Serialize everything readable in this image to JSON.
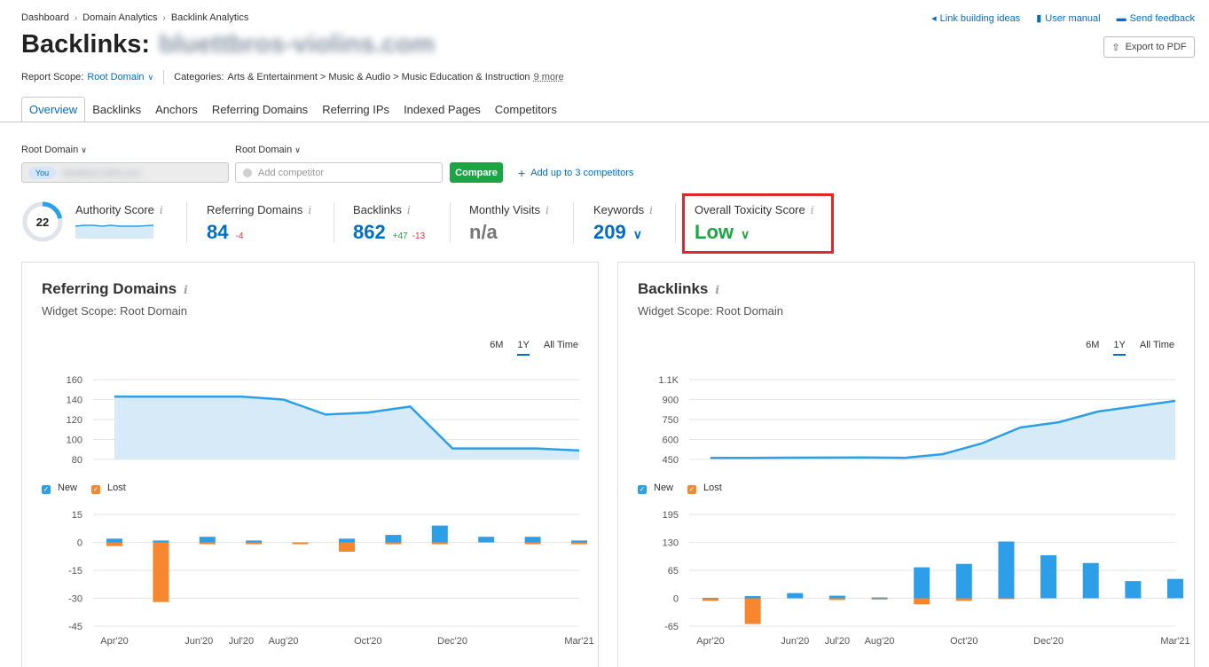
{
  "breadcrumb": [
    "Dashboard",
    "Domain Analytics",
    "Backlink Analytics"
  ],
  "top_links": [
    {
      "label": "Link building ideas",
      "icon": "megaphone-icon"
    },
    {
      "label": "User manual",
      "icon": "book-icon"
    },
    {
      "label": "Send feedback",
      "icon": "chat-icon"
    }
  ],
  "page_title": "Backlinks:",
  "page_domain": "bluettbros-violins.com",
  "export_label": "Export to PDF",
  "report_scope": {
    "label": "Report Scope:",
    "value": "Root Domain"
  },
  "categories": {
    "label": "Categories:",
    "value": "Arts & Entertainment > Music & Audio > Music Education & Instruction",
    "more": "9 more"
  },
  "tabs": [
    "Overview",
    "Backlinks",
    "Anchors",
    "Referring Domains",
    "Referring IPs",
    "Indexed Pages",
    "Competitors"
  ],
  "compare_bar": {
    "scope_1": "Root Domain",
    "scope_2": "Root Domain",
    "you_badge": "You",
    "you_domain": "bluettbros-violins.com",
    "competitor_placeholder": "Add competitor",
    "compare_button": "Compare",
    "add_competitors": "Add up to 3 competitors"
  },
  "metrics": {
    "authority": {
      "label": "Authority Score",
      "value": "22"
    },
    "referring_domains": {
      "label": "Referring Domains",
      "value": "84",
      "delta_down": "-4"
    },
    "backlinks": {
      "label": "Backlinks",
      "value": "862",
      "delta_up": "+47",
      "delta_down": "-13"
    },
    "monthly_visits": {
      "label": "Monthly Visits",
      "value": "n/a"
    },
    "keywords": {
      "label": "Keywords",
      "value": "209"
    },
    "toxicity": {
      "label": "Overall Toxicity Score",
      "value": "Low"
    }
  },
  "info_glyph": "i",
  "periods": [
    "6M",
    "1Y",
    "All Time"
  ],
  "legend": {
    "new": "New",
    "lost": "Lost"
  },
  "colors": {
    "accent": "#006dca",
    "new": "#2d9ee8",
    "lost": "#f6872e",
    "area": "#d6eaf8",
    "green": "#1ca543",
    "highlight": "#e0282b"
  },
  "widgets": [
    {
      "title": "Referring Domains",
      "scope": "Widget Scope: Root Domain"
    },
    {
      "title": "Backlinks",
      "scope": "Widget Scope: Root Domain"
    }
  ],
  "chart_data": [
    {
      "type": "area",
      "title": "Referring Domains",
      "x_ticks": [
        "Apr'20",
        "Jun'20",
        "Jul'20",
        "Aug'20",
        "Oct'20",
        "Dec'20",
        "Mar'21"
      ],
      "y_ticks": [
        "160",
        "140",
        "120",
        "100",
        "80"
      ],
      "ylim": [
        80,
        160
      ],
      "values": [
        143,
        143,
        143,
        143,
        140,
        125,
        127,
        133,
        91,
        91,
        91,
        89
      ]
    },
    {
      "type": "bar",
      "title": "Referring Domains New/Lost",
      "y_ticks": [
        "15",
        "0",
        "-15",
        "-30",
        "-45"
      ],
      "ylim": [
        -45,
        15
      ],
      "series": [
        {
          "name": "New",
          "values": [
            2,
            1,
            3,
            1,
            0,
            2,
            4,
            9,
            3,
            3,
            1
          ]
        },
        {
          "name": "Lost",
          "values": [
            -2,
            -32,
            -1,
            -1,
            -1,
            -5,
            -1,
            -1,
            0,
            -1,
            -1
          ]
        }
      ]
    },
    {
      "type": "area",
      "title": "Backlinks",
      "x_ticks": [
        "Apr'20",
        "Jun'20",
        "Jul'20",
        "Aug'20",
        "Oct'20",
        "Dec'20",
        "Mar'21"
      ],
      "y_ticks": [
        "1.1K",
        "900",
        "750",
        "600",
        "450"
      ],
      "ylim": [
        450,
        1050
      ],
      "values": [
        462,
        462,
        463,
        464,
        465,
        462,
        490,
        570,
        690,
        730,
        810,
        850,
        890
      ]
    },
    {
      "type": "bar",
      "title": "Backlinks New/Lost",
      "y_ticks": [
        "195",
        "130",
        "65",
        "0",
        "-65"
      ],
      "ylim": [
        -65,
        195
      ],
      "series": [
        {
          "name": "New",
          "values": [
            1,
            5,
            12,
            6,
            2,
            72,
            80,
            132,
            100,
            82,
            40,
            45
          ]
        },
        {
          "name": "Lost",
          "values": [
            -6,
            -60,
            0,
            -4,
            -3,
            -14,
            -6,
            -2,
            0,
            0,
            0,
            0
          ]
        }
      ]
    }
  ]
}
